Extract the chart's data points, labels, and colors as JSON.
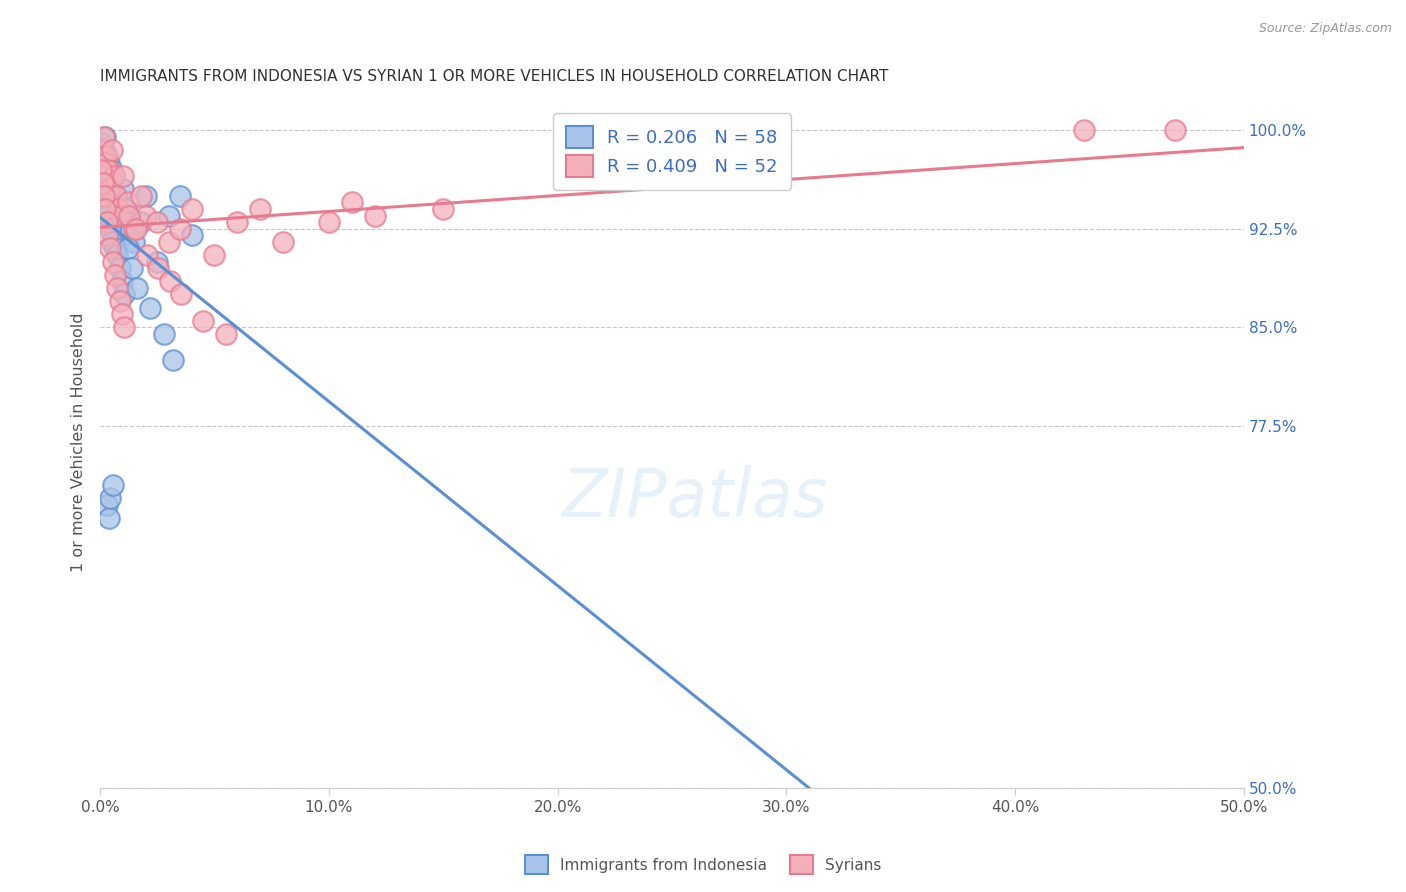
{
  "title": "IMMIGRANTS FROM INDONESIA VS SYRIAN 1 OR MORE VEHICLES IN HOUSEHOLD CORRELATION CHART",
  "source": "Source: ZipAtlas.com",
  "ylabel": "1 or more Vehicles in Household",
  "xlim": [
    0.0,
    50.0
  ],
  "ylim": [
    50.0,
    102.5
  ],
  "yticks": [
    50.0,
    77.5,
    85.0,
    92.5,
    100.0
  ],
  "xticks": [
    0.0,
    10.0,
    20.0,
    30.0,
    40.0,
    50.0
  ],
  "background_color": "#ffffff",
  "grid_color": "#c8c8c8",
  "indonesia_color": "#5b8fd4",
  "indonesia_face": "#a8c4e8",
  "syrian_color": "#e87a8e",
  "syrian_face": "#f2b0bb",
  "legend_indonesia_label": "R = 0.206   N = 58",
  "legend_syrian_label": "R = 0.409   N = 52",
  "legend_label_indonesia": "Immigrants from Indonesia",
  "legend_label_syrian": "Syrians",
  "indonesia_scatter_x": [
    0.1,
    0.1,
    0.15,
    0.15,
    0.2,
    0.2,
    0.2,
    0.25,
    0.25,
    0.3,
    0.3,
    0.35,
    0.35,
    0.4,
    0.4,
    0.5,
    0.5,
    0.6,
    0.6,
    0.7,
    0.8,
    0.9,
    1.0,
    1.0,
    1.1,
    1.2,
    1.3,
    1.5,
    1.8,
    2.0,
    2.5,
    3.0,
    3.5,
    4.0,
    0.05,
    0.08,
    0.12,
    0.18,
    0.22,
    0.28,
    0.32,
    0.42,
    0.52,
    0.65,
    0.75,
    0.85,
    0.95,
    1.05,
    1.2,
    1.4,
    1.6,
    2.2,
    2.8,
    3.2,
    0.3,
    0.4,
    0.45,
    0.55
  ],
  "indonesia_scatter_y": [
    99.0,
    97.5,
    98.5,
    96.5,
    99.5,
    98.0,
    96.0,
    97.0,
    95.5,
    98.0,
    96.5,
    95.0,
    93.5,
    97.5,
    94.5,
    97.0,
    93.0,
    96.5,
    92.5,
    95.0,
    94.0,
    93.0,
    95.5,
    92.0,
    94.0,
    93.5,
    92.5,
    91.5,
    93.0,
    95.0,
    90.0,
    93.5,
    95.0,
    92.0,
    96.0,
    97.0,
    97.5,
    96.5,
    95.5,
    94.5,
    93.5,
    92.5,
    91.5,
    91.0,
    90.5,
    89.5,
    88.5,
    87.5,
    91.0,
    89.5,
    88.0,
    86.5,
    84.5,
    82.5,
    71.5,
    70.5,
    72.0,
    73.0
  ],
  "syrian_scatter_x": [
    0.1,
    0.15,
    0.2,
    0.25,
    0.3,
    0.35,
    0.4,
    0.5,
    0.6,
    0.7,
    0.8,
    0.9,
    1.0,
    1.2,
    1.5,
    1.8,
    2.0,
    2.5,
    3.0,
    3.5,
    4.0,
    5.0,
    6.0,
    7.0,
    8.0,
    10.0,
    11.0,
    12.0,
    15.0,
    43.0,
    47.0,
    0.05,
    0.12,
    0.18,
    0.22,
    0.28,
    0.32,
    0.42,
    0.55,
    0.65,
    0.75,
    0.85,
    0.95,
    1.05,
    1.25,
    1.55,
    2.05,
    2.55,
    3.05,
    3.55,
    4.5,
    5.5
  ],
  "syrian_scatter_y": [
    98.5,
    99.5,
    98.0,
    97.5,
    96.5,
    97.0,
    95.5,
    98.5,
    96.5,
    95.0,
    94.0,
    93.5,
    96.5,
    94.5,
    92.5,
    95.0,
    93.5,
    93.0,
    91.5,
    92.5,
    94.0,
    90.5,
    93.0,
    94.0,
    91.5,
    93.0,
    94.5,
    93.5,
    94.0,
    100.0,
    100.0,
    97.0,
    96.0,
    95.0,
    94.0,
    93.0,
    92.0,
    91.0,
    90.0,
    89.0,
    88.0,
    87.0,
    86.0,
    85.0,
    93.5,
    92.5,
    90.5,
    89.5,
    88.5,
    87.5,
    85.5,
    84.5
  ]
}
